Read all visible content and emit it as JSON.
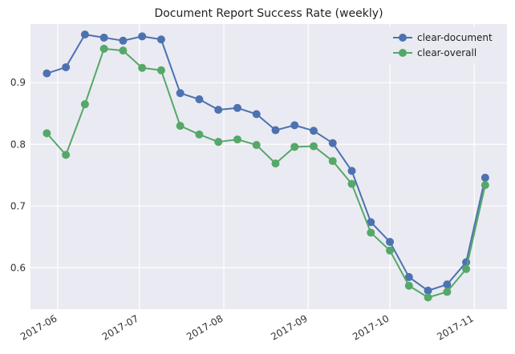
{
  "chart_data": {
    "type": "line",
    "title": "Document Report Success Rate (weekly)",
    "xlabel": "",
    "ylabel": "",
    "x_axis_type": "date",
    "xlim": [
      "2017-05-22",
      "2017-11-13"
    ],
    "ylim": [
      0.533,
      0.995
    ],
    "grid": true,
    "legend_position": "top-right",
    "x_ticks": [
      {
        "date": "2017-06-01",
        "label": "2017-06"
      },
      {
        "date": "2017-07-01",
        "label": "2017-07"
      },
      {
        "date": "2017-08-01",
        "label": "2017-08"
      },
      {
        "date": "2017-09-01",
        "label": "2017-09"
      },
      {
        "date": "2017-10-01",
        "label": "2017-10"
      },
      {
        "date": "2017-11-01",
        "label": "2017-11"
      }
    ],
    "y_ticks": [
      0.6,
      0.7,
      0.8,
      0.9
    ],
    "x": [
      "2017-05-28",
      "2017-06-04",
      "2017-06-11",
      "2017-06-18",
      "2017-06-25",
      "2017-07-02",
      "2017-07-09",
      "2017-07-16",
      "2017-07-23",
      "2017-07-30",
      "2017-08-06",
      "2017-08-13",
      "2017-08-20",
      "2017-08-27",
      "2017-09-03",
      "2017-09-10",
      "2017-09-17",
      "2017-09-24",
      "2017-10-01",
      "2017-10-08",
      "2017-10-15",
      "2017-10-22",
      "2017-10-29",
      "2017-11-05"
    ],
    "series": [
      {
        "name": "clear-document",
        "color": "#4c72b0",
        "values": [
          0.915,
          0.925,
          0.978,
          0.973,
          0.968,
          0.975,
          0.97,
          0.883,
          0.873,
          0.856,
          0.859,
          0.849,
          0.823,
          0.831,
          0.822,
          0.802,
          0.757,
          0.674,
          0.642,
          0.585,
          0.563,
          0.573,
          0.609,
          0.746
        ]
      },
      {
        "name": "clear-overall",
        "color": "#55a868",
        "values": [
          0.818,
          0.783,
          0.865,
          0.955,
          0.952,
          0.924,
          0.92,
          0.83,
          0.816,
          0.804,
          0.808,
          0.799,
          0.769,
          0.796,
          0.797,
          0.773,
          0.736,
          0.657,
          0.628,
          0.571,
          0.552,
          0.561,
          0.598,
          0.734
        ]
      }
    ]
  }
}
